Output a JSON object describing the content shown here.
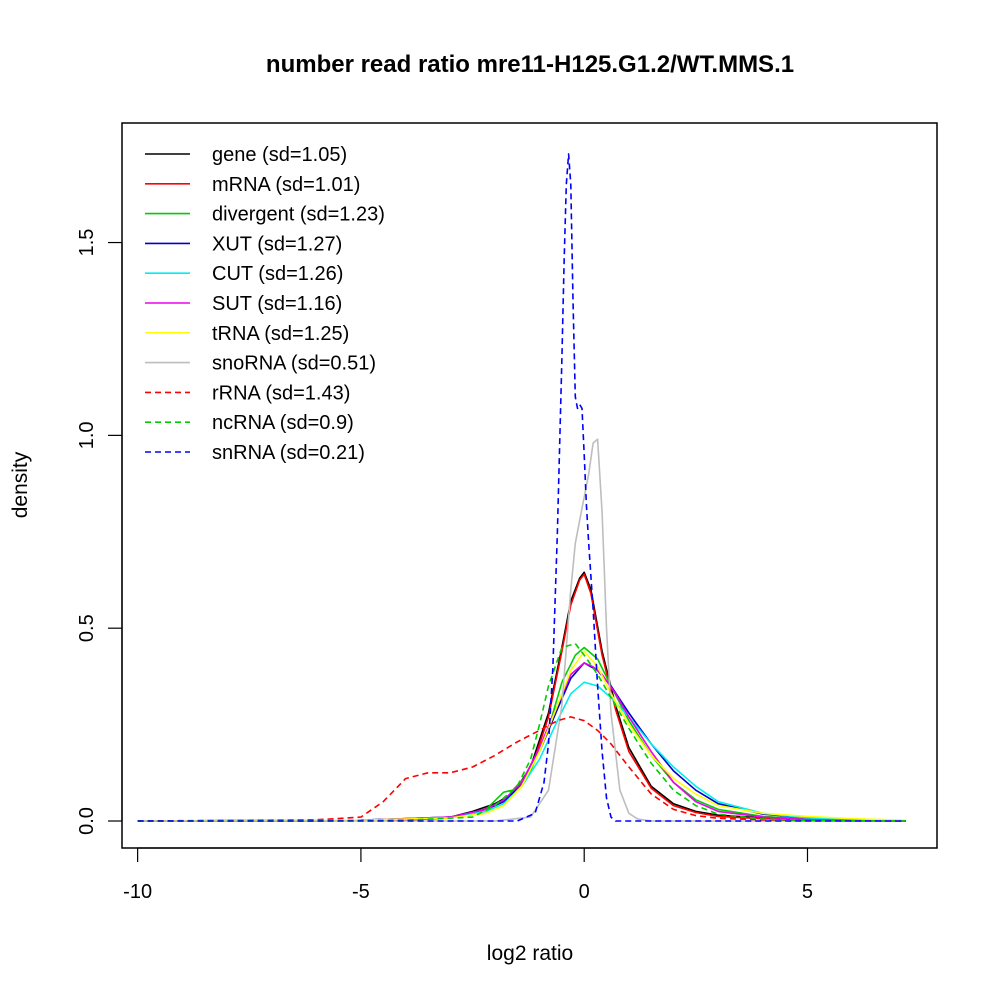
{
  "chart_data": {
    "type": "line",
    "title": "number read ratio mre11-H125.G1.2/WT.MMS.1",
    "xlabel": "log2 ratio",
    "ylabel": "density",
    "xlim": [
      -10.35,
      7.9
    ],
    "ylim": [
      -0.07,
      1.81
    ],
    "xticks": [
      -10,
      -5,
      0,
      5
    ],
    "xtick_labels": [
      "-10",
      "-5",
      "0",
      "5"
    ],
    "yticks": [
      0.0,
      0.5,
      1.0,
      1.5
    ],
    "ytick_labels": [
      "0.0",
      "0.5",
      "1.0",
      "1.5"
    ],
    "grid": false,
    "legend_position": "top-left",
    "series": [
      {
        "name": "gene (sd=1.05)",
        "color": "#000000",
        "dash": "solid",
        "x": [
          -10,
          -6,
          -4,
          -3,
          -2.5,
          -2,
          -1.6,
          -1.2,
          -0.8,
          -0.5,
          -0.3,
          -0.1,
          0,
          0.15,
          0.4,
          0.7,
          1.0,
          1.5,
          2,
          2.5,
          3,
          4,
          5,
          6,
          7.2
        ],
        "y": [
          0,
          0,
          0.003,
          0.01,
          0.025,
          0.045,
          0.07,
          0.14,
          0.28,
          0.45,
          0.57,
          0.63,
          0.645,
          0.6,
          0.44,
          0.3,
          0.19,
          0.09,
          0.045,
          0.025,
          0.015,
          0.008,
          0.004,
          0.002,
          0
        ]
      },
      {
        "name": "mRNA (sd=1.01)",
        "color": "#ff0000",
        "dash": "solid",
        "x": [
          -10,
          -6,
          -4,
          -3,
          -2.5,
          -2,
          -1.6,
          -1.2,
          -0.8,
          -0.5,
          -0.3,
          -0.1,
          0,
          0.15,
          0.4,
          0.7,
          1.0,
          1.5,
          2,
          2.5,
          3,
          4,
          5,
          6,
          7.2
        ],
        "y": [
          0,
          0,
          0.002,
          0.008,
          0.02,
          0.04,
          0.065,
          0.13,
          0.27,
          0.44,
          0.56,
          0.625,
          0.64,
          0.59,
          0.43,
          0.29,
          0.18,
          0.085,
          0.04,
          0.022,
          0.012,
          0.006,
          0.003,
          0.001,
          0
        ]
      },
      {
        "name": "divergent (sd=1.23)",
        "color": "#00cd00",
        "dash": "solid",
        "x": [
          -10,
          -5,
          -3,
          -2.2,
          -1.8,
          -1.6,
          -1.2,
          -0.8,
          -0.5,
          -0.2,
          0,
          0.3,
          0.6,
          1.0,
          1.5,
          2,
          2.5,
          3,
          4,
          5,
          6,
          7.2
        ],
        "y": [
          0,
          0.002,
          0.01,
          0.03,
          0.075,
          0.08,
          0.13,
          0.24,
          0.36,
          0.43,
          0.45,
          0.42,
          0.35,
          0.26,
          0.17,
          0.1,
          0.055,
          0.03,
          0.012,
          0.005,
          0.002,
          0
        ]
      },
      {
        "name": "XUT (sd=1.27)",
        "color": "#0000cd",
        "dash": "solid",
        "x": [
          -10,
          -5,
          -3,
          -2.2,
          -1.8,
          -1.4,
          -1,
          -0.6,
          -0.3,
          0,
          0.3,
          0.6,
          1.0,
          1.5,
          2,
          2.5,
          3,
          4,
          5,
          6,
          7.2
        ],
        "y": [
          0,
          0.002,
          0.01,
          0.03,
          0.05,
          0.1,
          0.18,
          0.29,
          0.37,
          0.41,
          0.39,
          0.35,
          0.28,
          0.2,
          0.13,
          0.08,
          0.045,
          0.018,
          0.008,
          0.003,
          0
        ]
      },
      {
        "name": "CUT (sd=1.26)",
        "color": "#00eeee",
        "dash": "solid",
        "x": [
          -10,
          -5,
          -3,
          -2.2,
          -1.8,
          -1.4,
          -1,
          -0.6,
          -0.3,
          0,
          0.3,
          0.6,
          1.0,
          1.5,
          2,
          2.5,
          3,
          4,
          5,
          6,
          7.2
        ],
        "y": [
          0,
          0.002,
          0.01,
          0.025,
          0.045,
          0.09,
          0.16,
          0.26,
          0.33,
          0.36,
          0.35,
          0.32,
          0.27,
          0.2,
          0.14,
          0.09,
          0.05,
          0.02,
          0.008,
          0.003,
          0
        ]
      },
      {
        "name": "SUT (sd=1.16)",
        "color": "#ee00ee",
        "dash": "solid",
        "x": [
          -10,
          -5,
          -3,
          -2.2,
          -1.8,
          -1.4,
          -1,
          -0.6,
          -0.3,
          0,
          0.2,
          0.4,
          0.7,
          1.0,
          1.5,
          2,
          2.5,
          3,
          4,
          5,
          6,
          7.2
        ],
        "y": [
          0,
          0.002,
          0.01,
          0.03,
          0.055,
          0.1,
          0.19,
          0.3,
          0.38,
          0.41,
          0.4,
          0.38,
          0.33,
          0.27,
          0.18,
          0.1,
          0.05,
          0.025,
          0.01,
          0.004,
          0.001,
          0
        ]
      },
      {
        "name": "tRNA (sd=1.25)",
        "color": "#ffff00",
        "dash": "solid",
        "x": [
          -10,
          -5,
          -3,
          -2.2,
          -1.8,
          -1.4,
          -1,
          -0.6,
          -0.3,
          0,
          0.3,
          0.6,
          1.0,
          1.5,
          2,
          2.5,
          3,
          4,
          5,
          6,
          7.2
        ],
        "y": [
          0,
          0.002,
          0.008,
          0.02,
          0.04,
          0.09,
          0.18,
          0.3,
          0.39,
          0.44,
          0.4,
          0.33,
          0.25,
          0.17,
          0.11,
          0.07,
          0.04,
          0.02,
          0.012,
          0.006,
          0.002
        ]
      },
      {
        "name": "snoRNA (sd=0.51)",
        "color": "#bebebe",
        "dash": "solid",
        "x": [
          -10,
          -2,
          -1.2,
          -0.8,
          -0.5,
          -0.3,
          -0.2,
          -0.1,
          0,
          0.1,
          0.2,
          0.3,
          0.4,
          0.5,
          0.6,
          0.8,
          1.0,
          1.2,
          1.5,
          7.2
        ],
        "y": [
          0,
          0,
          0.01,
          0.08,
          0.3,
          0.6,
          0.72,
          0.78,
          0.84,
          0.9,
          0.98,
          0.99,
          0.8,
          0.5,
          0.28,
          0.08,
          0.02,
          0.005,
          0,
          0
        ]
      },
      {
        "name": "rRNA (sd=1.43)",
        "color": "#ff0000",
        "dash": "dashed",
        "x": [
          -10,
          -6,
          -5,
          -4.5,
          -4,
          -3.5,
          -3,
          -2.5,
          -2,
          -1.5,
          -1,
          -0.6,
          -0.3,
          0,
          0.3,
          0.6,
          1.0,
          1.5,
          2,
          2.5,
          3,
          4,
          5,
          6,
          7.2
        ],
        "y": [
          0,
          0.003,
          0.01,
          0.05,
          0.11,
          0.125,
          0.125,
          0.14,
          0.17,
          0.205,
          0.235,
          0.26,
          0.27,
          0.26,
          0.235,
          0.2,
          0.14,
          0.07,
          0.03,
          0.014,
          0.007,
          0.003,
          0.001,
          0,
          0
        ]
      },
      {
        "name": "ncRNA (sd=0.9)",
        "color": "#00cd00",
        "dash": "dashed",
        "x": [
          -10,
          -4,
          -2.5,
          -2,
          -1.5,
          -1.2,
          -1,
          -0.8,
          -0.5,
          -0.2,
          0,
          0.3,
          0.6,
          1.0,
          1.5,
          2,
          2.5,
          3,
          4,
          5,
          7.2
        ],
        "y": [
          0,
          0.002,
          0.01,
          0.04,
          0.09,
          0.16,
          0.25,
          0.35,
          0.45,
          0.46,
          0.43,
          0.38,
          0.32,
          0.24,
          0.15,
          0.08,
          0.04,
          0.018,
          0.005,
          0.001,
          0
        ]
      },
      {
        "name": "snRNA (sd=0.21)",
        "color": "#0000ff",
        "dash": "dashed",
        "x": [
          -10,
          -1.5,
          -1.1,
          -0.9,
          -0.8,
          -0.7,
          -0.6,
          -0.5,
          -0.45,
          -0.4,
          -0.35,
          -0.3,
          -0.25,
          -0.2,
          -0.15,
          -0.1,
          -0.05,
          0,
          0.05,
          0.1,
          0.2,
          0.3,
          0.4,
          0.5,
          0.6,
          0.7,
          7.2
        ],
        "y": [
          0,
          0,
          0.02,
          0.1,
          0.2,
          0.4,
          0.75,
          1.2,
          1.45,
          1.65,
          1.73,
          1.65,
          1.35,
          1.1,
          1.07,
          1.08,
          1.07,
          0.95,
          0.82,
          0.72,
          0.55,
          0.35,
          0.18,
          0.06,
          0.01,
          0,
          0
        ]
      }
    ]
  }
}
